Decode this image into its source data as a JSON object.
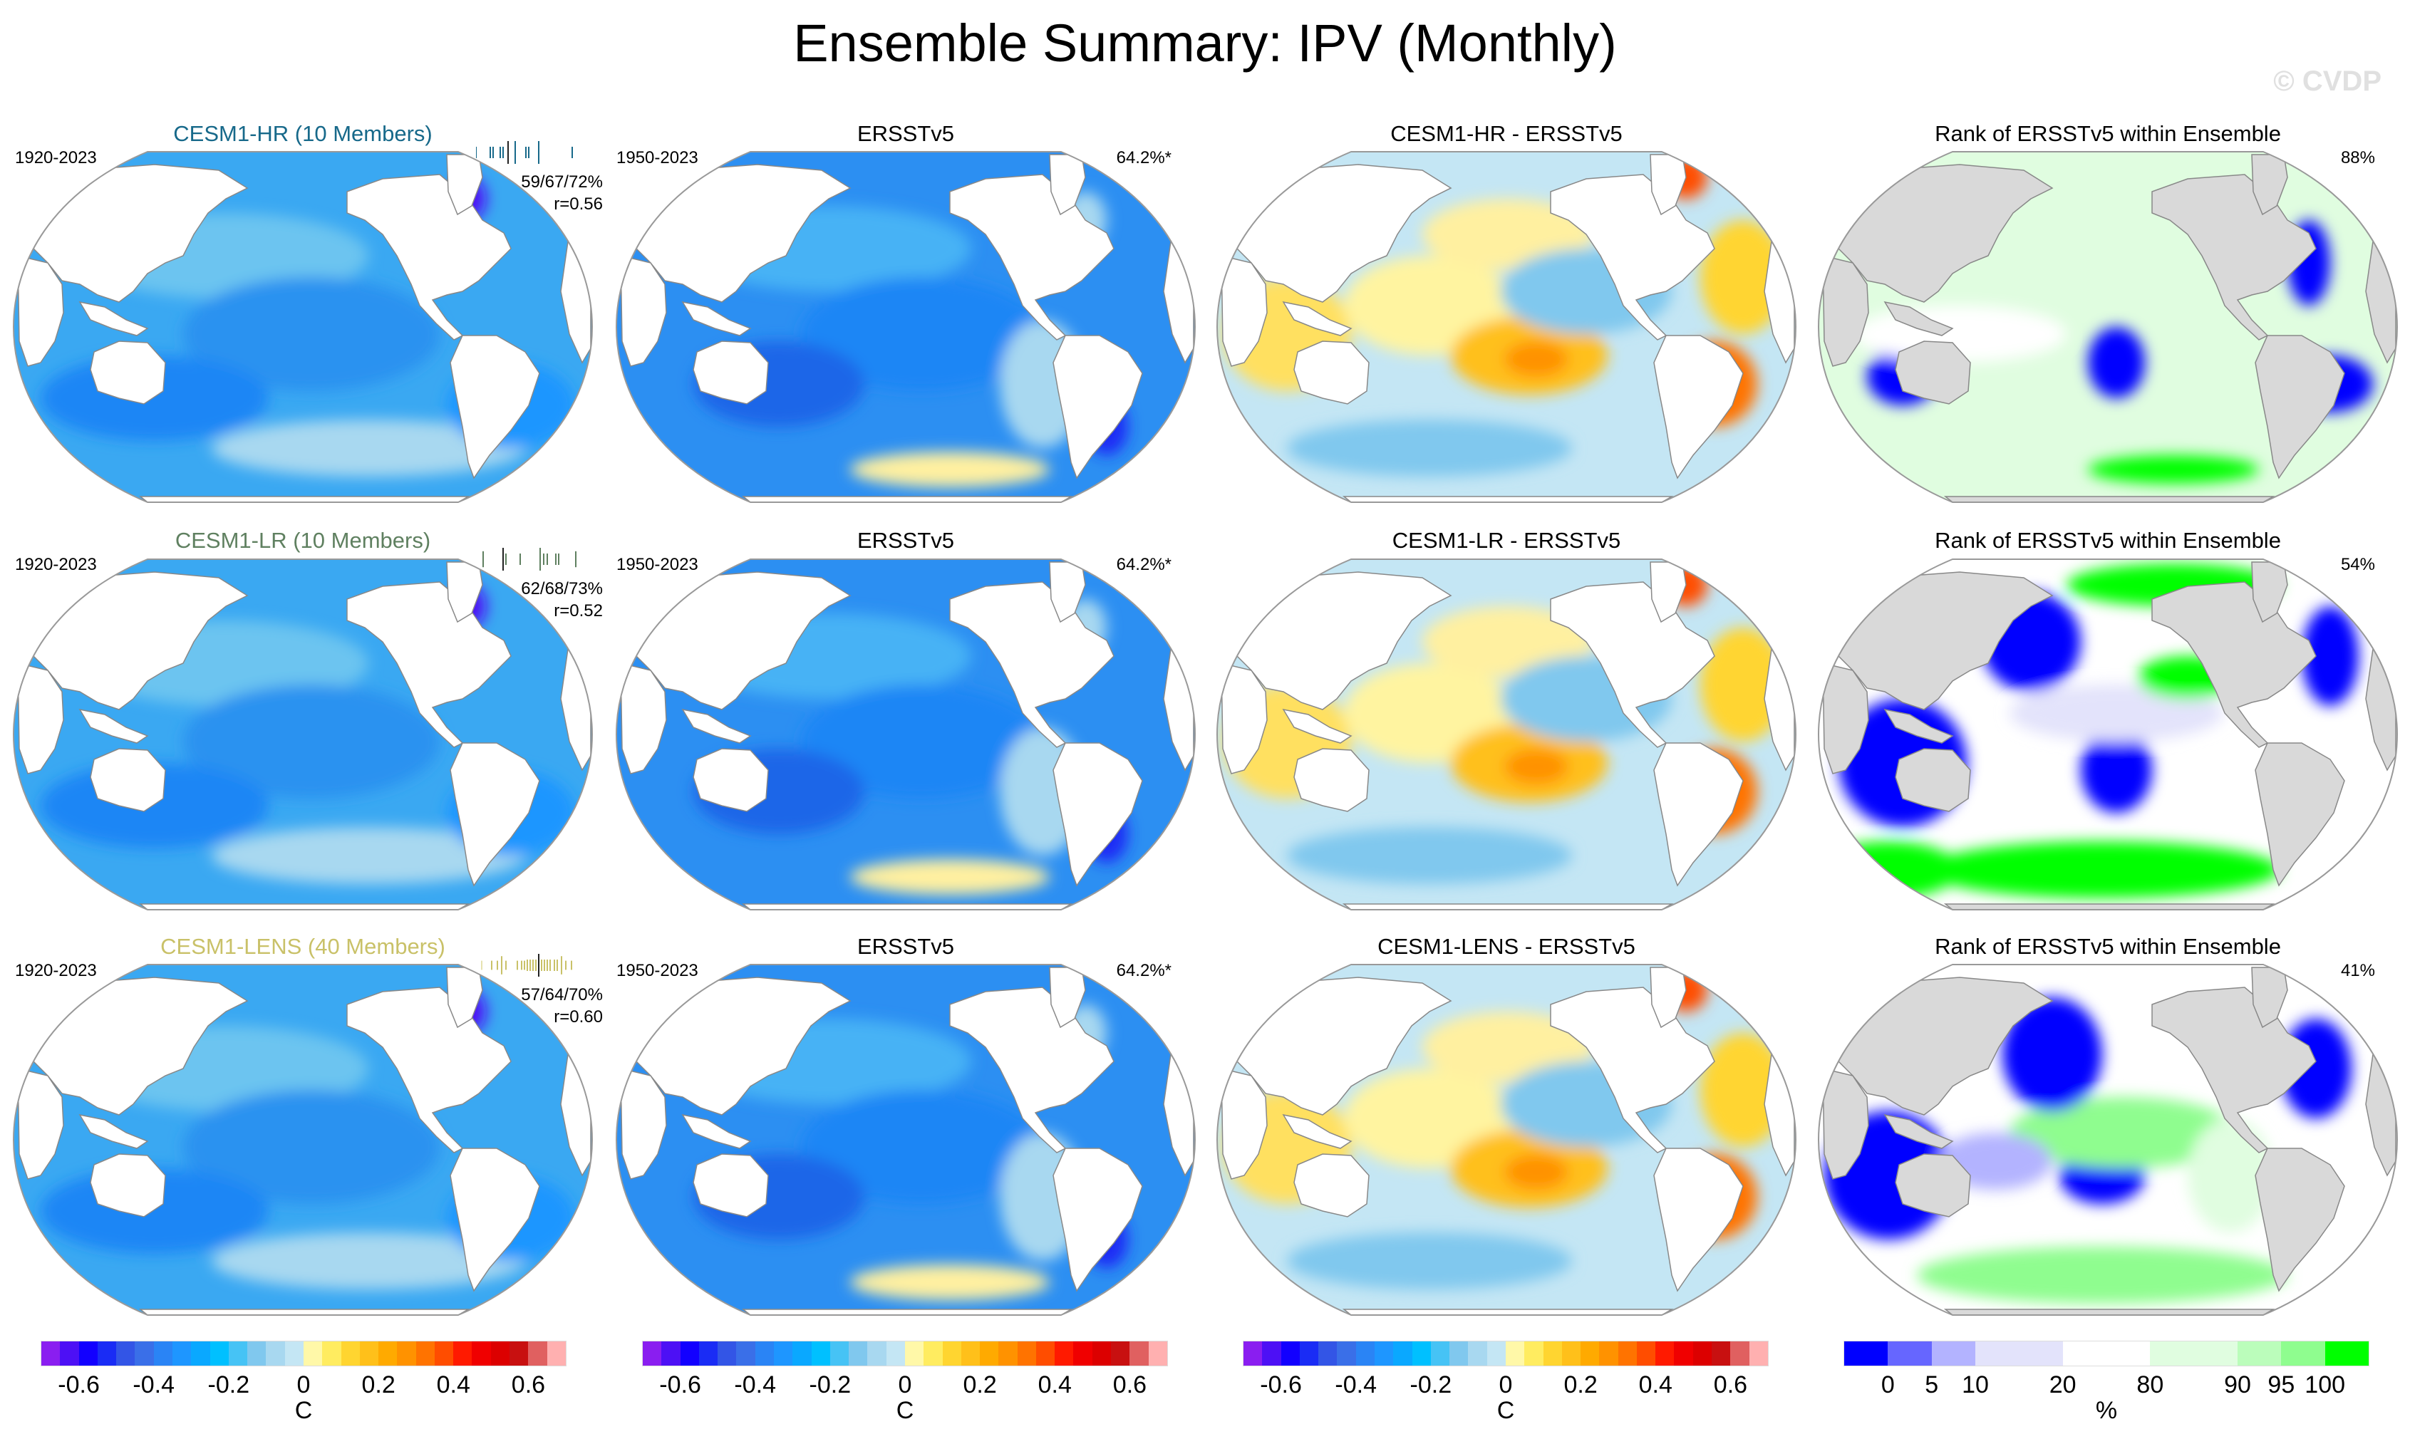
{
  "title": "Ensemble Summary: IPV (Monthly)",
  "watermark": "© CVDP",
  "rows": [
    {
      "model_title": "CESM1-HR (10 Members)",
      "model_color": "#17698a",
      "model_period": "1920-2023",
      "stats": "59/67/72%",
      "r": "r=0.56",
      "obs_title": "ERSSTv5",
      "obs_period": "1950-2023",
      "obs_pct": "64.2%*",
      "diff_title": "CESM1-HR - ERSSTv5",
      "rank_title": "Rank of ERSSTv5 within Ensemble",
      "rank_pct": "88%"
    },
    {
      "model_title": "CESM1-LR (10 Members)",
      "model_color": "#5f8060",
      "model_period": "1920-2023",
      "stats": "62/68/73%",
      "r": "r=0.52",
      "obs_title": "ERSSTv5",
      "obs_period": "1950-2023",
      "obs_pct": "64.2%*",
      "diff_title": "CESM1-LR - ERSSTv5",
      "rank_title": "Rank of ERSSTv5 within Ensemble",
      "rank_pct": "54%"
    },
    {
      "model_title": "CESM1-LENS (40 Members)",
      "model_color": "#c9c168",
      "model_period": "1920-2023",
      "stats": "57/64/70%",
      "r": "r=0.60",
      "obs_title": "ERSSTv5",
      "obs_period": "1950-2023",
      "obs_pct": "64.2%*",
      "diff_title": "CESM1-LENS - ERSSTv5",
      "rank_title": "Rank of ERSSTv5 within Ensemble",
      "rank_pct": "41%"
    }
  ],
  "colorbars": {
    "temp": {
      "unit": "C",
      "range": [
        -0.7,
        0.7
      ],
      "labels": [
        "-0.6",
        "-0.4",
        "-0.2",
        "0",
        "0.2",
        "0.4",
        "0.6"
      ],
      "label_values": [
        -0.6,
        -0.4,
        -0.2,
        0,
        0.2,
        0.4,
        0.6
      ],
      "colors": [
        "#8a1ef0",
        "#4d10f5",
        "#1200ff",
        "#1a2cf5",
        "#3355e6",
        "#3a6fe8",
        "#2a84f5",
        "#1e96ff",
        "#0aa8ff",
        "#00c0ff",
        "#46c3f5",
        "#80c8ee",
        "#a8d8f0",
        "#c4e6f4",
        "#fff8a8",
        "#ffec60",
        "#ffd530",
        "#ffc01a",
        "#ffaa00",
        "#ff9200",
        "#ff7300",
        "#ff4d00",
        "#ff1a00",
        "#f00000",
        "#dc0000",
        "#c81010",
        "#e06060",
        "#ffb0b0"
      ]
    },
    "rank": {
      "unit": "%",
      "labels": [
        "0",
        "5",
        "10",
        "20",
        "80",
        "90",
        "95",
        "100"
      ],
      "colors": [
        "#0000ff",
        "#6666ff",
        "#b3b3ff",
        "#e3e3fb",
        "#ffffff",
        "#e0fde0",
        "#bbfdbb",
        "#8ffd8f",
        "#00ff00"
      ],
      "bin_weights": [
        1,
        1,
        1,
        2,
        2,
        2,
        1,
        1,
        1
      ]
    }
  }
}
